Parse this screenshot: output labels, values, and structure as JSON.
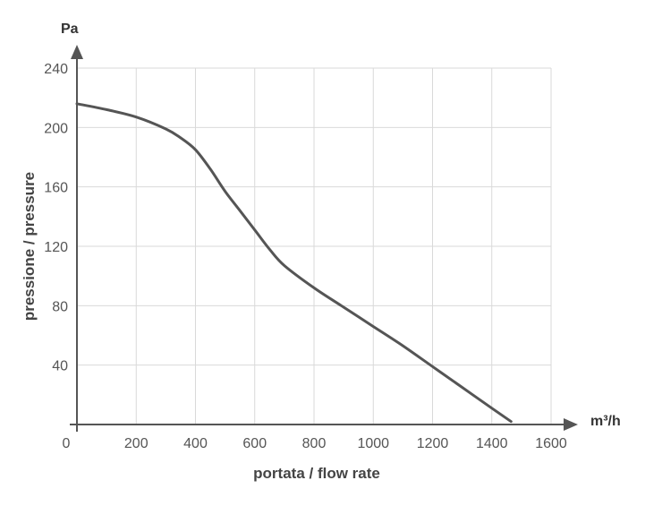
{
  "chart_data": {
    "type": "line",
    "title": "",
    "xlabel": "portata / flow rate",
    "ylabel": "pressione / pressure",
    "x_unit": "m³/h",
    "y_unit": "Pa",
    "xlim": [
      0,
      1600
    ],
    "ylim": [
      0,
      240
    ],
    "x_ticks": [
      "0",
      "200",
      "400",
      "600",
      "800",
      "1000",
      "1200",
      "1400",
      "1600"
    ],
    "y_ticks": [
      "40",
      "80",
      "120",
      "160",
      "200",
      "240"
    ],
    "grid": true,
    "series": [
      {
        "x": [
          0,
          100,
          200,
          300,
          350,
          400,
          450,
          500,
          550,
          600,
          650,
          700,
          800,
          900,
          1000,
          1100,
          1200,
          1300,
          1400,
          1465
        ],
        "y": [
          216,
          212,
          207,
          199,
          193,
          185,
          172,
          157,
          144,
          131,
          118,
          107,
          92,
          79,
          66,
          53,
          39,
          25,
          11,
          2
        ]
      }
    ],
    "colors": {
      "line": "#555555",
      "grid": "#d9d9d9",
      "axis": "#555555"
    }
  }
}
